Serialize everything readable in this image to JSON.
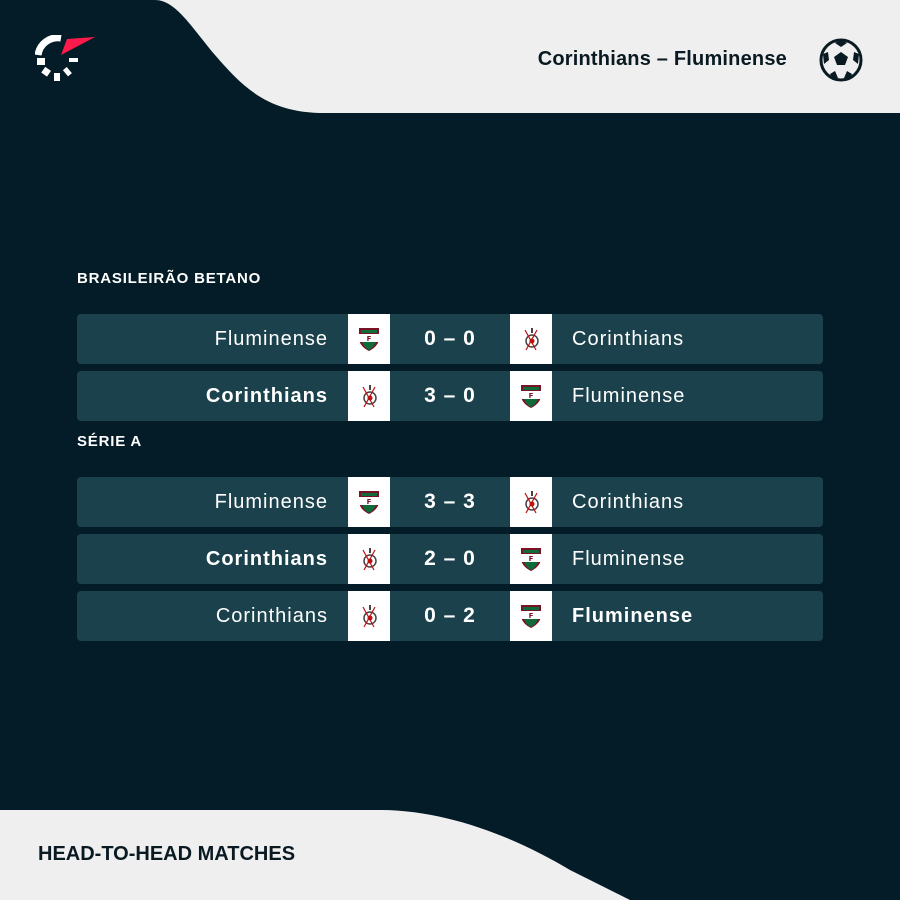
{
  "header": {
    "title": "Corinthians – Fluminense",
    "sport_icon": "soccer-ball-icon",
    "logo": "flashscore-logo"
  },
  "colors": {
    "background": "#031c27",
    "row": "#1b424c",
    "panel": "#efefef",
    "accent": "#ff1a4b"
  },
  "sections": [
    {
      "label": "BRASILEIRÃO BETANO",
      "matches": [
        {
          "home": "Fluminense",
          "away": "Corinthians",
          "score": "0 – 0",
          "home_crest": "fluminense",
          "away_crest": "corinthians",
          "winner": "none"
        },
        {
          "home": "Corinthians",
          "away": "Fluminense",
          "score": "3 – 0",
          "home_crest": "corinthians",
          "away_crest": "fluminense",
          "winner": "home"
        }
      ]
    },
    {
      "label": "SÉRIE A",
      "matches": [
        {
          "home": "Fluminense",
          "away": "Corinthians",
          "score": "3 – 3",
          "home_crest": "fluminense",
          "away_crest": "corinthians",
          "winner": "none"
        },
        {
          "home": "Corinthians",
          "away": "Fluminense",
          "score": "2 – 0",
          "home_crest": "corinthians",
          "away_crest": "fluminense",
          "winner": "home"
        },
        {
          "home": "Corinthians",
          "away": "Fluminense",
          "score": "0 – 2",
          "home_crest": "corinthians",
          "away_crest": "fluminense",
          "winner": "away"
        }
      ]
    }
  ],
  "footer": {
    "label": "HEAD-TO-HEAD MATCHES"
  }
}
